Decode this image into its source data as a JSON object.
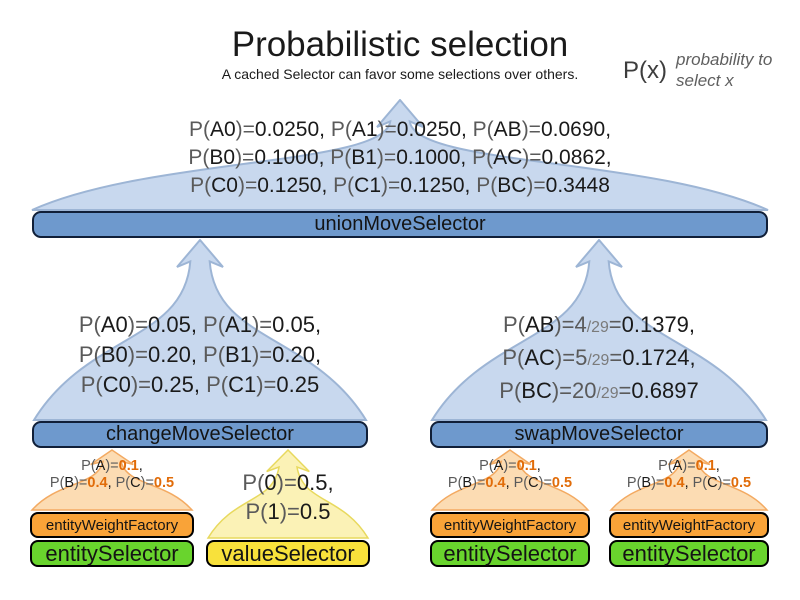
{
  "header": {
    "title": "Probabilistic selection",
    "subtitle": "A cached Selector can favor some selections over others.",
    "legend": {
      "symbol": "P(x)",
      "description": "probability to select x"
    }
  },
  "colors": {
    "blue_funnel": "#c8d8ee",
    "blue_funnel_stroke": "#9db5d5",
    "blue_bar": "#6e99cd",
    "orange_funnel": "#fcdcb3",
    "orange_funnel_stroke": "#f3aa62",
    "orange_bar": "#f9a338",
    "green_bar": "#69d42d",
    "yellow_funnel": "#fbf2b6",
    "yellow_funnel_stroke": "#e8d95e",
    "yellow_bar": "#f8e13b",
    "highlight_orange": "#e16c09"
  },
  "diagram": {
    "union": {
      "label": "unionMoveSelector",
      "lines": [
        [
          {
            "t": "P(",
            "k": "dim"
          },
          {
            "t": "A0",
            "k": "val"
          },
          {
            "t": ")=",
            "k": "dim"
          },
          {
            "t": "0.0250",
            "k": "val"
          },
          {
            "t": ", ",
            "k": "val"
          },
          {
            "t": "P(",
            "k": "dim"
          },
          {
            "t": "A1",
            "k": "val"
          },
          {
            "t": ")=",
            "k": "dim"
          },
          {
            "t": "0.0250",
            "k": "val"
          },
          {
            "t": ", ",
            "k": "val"
          },
          {
            "t": "P(",
            "k": "dim"
          },
          {
            "t": "AB",
            "k": "val"
          },
          {
            "t": ")=",
            "k": "dim"
          },
          {
            "t": "0.0690",
            "k": "val"
          },
          {
            "t": ",",
            "k": "val"
          }
        ],
        [
          {
            "t": "P(",
            "k": "dim"
          },
          {
            "t": "B0",
            "k": "val"
          },
          {
            "t": ")=",
            "k": "dim"
          },
          {
            "t": "0.1000",
            "k": "val"
          },
          {
            "t": ", ",
            "k": "val"
          },
          {
            "t": "P(",
            "k": "dim"
          },
          {
            "t": "B1",
            "k": "val"
          },
          {
            "t": ")=",
            "k": "dim"
          },
          {
            "t": "0.1000",
            "k": "val"
          },
          {
            "t": ", ",
            "k": "val"
          },
          {
            "t": "P(",
            "k": "dim"
          },
          {
            "t": "AC",
            "k": "val"
          },
          {
            "t": ")=",
            "k": "dim"
          },
          {
            "t": "0.0862",
            "k": "val"
          },
          {
            "t": ",",
            "k": "val"
          }
        ],
        [
          {
            "t": "P(",
            "k": "dim"
          },
          {
            "t": "C0",
            "k": "val"
          },
          {
            "t": ")=",
            "k": "dim"
          },
          {
            "t": "0.1250",
            "k": "val"
          },
          {
            "t": ", ",
            "k": "val"
          },
          {
            "t": "P(",
            "k": "dim"
          },
          {
            "t": "C1",
            "k": "val"
          },
          {
            "t": ")=",
            "k": "dim"
          },
          {
            "t": "0.1250",
            "k": "val"
          },
          {
            "t": ", ",
            "k": "val"
          },
          {
            "t": "P(",
            "k": "dim"
          },
          {
            "t": "BC",
            "k": "val"
          },
          {
            "t": ")=",
            "k": "dim"
          },
          {
            "t": "0.3448",
            "k": "val"
          }
        ]
      ]
    },
    "change": {
      "label": "changeMoveSelector",
      "lines": [
        [
          {
            "t": "P(",
            "k": "dim"
          },
          {
            "t": "A0",
            "k": "val"
          },
          {
            "t": ")=",
            "k": "dim"
          },
          {
            "t": "0.05",
            "k": "val"
          },
          {
            "t": ", ",
            "k": "val"
          },
          {
            "t": "P(",
            "k": "dim"
          },
          {
            "t": "A1",
            "k": "val"
          },
          {
            "t": ")=",
            "k": "dim"
          },
          {
            "t": "0.05",
            "k": "val"
          },
          {
            "t": ",",
            "k": "val"
          }
        ],
        [
          {
            "t": "P(",
            "k": "dim"
          },
          {
            "t": "B0",
            "k": "val"
          },
          {
            "t": ")=",
            "k": "dim"
          },
          {
            "t": "0.20",
            "k": "val"
          },
          {
            "t": ", ",
            "k": "val"
          },
          {
            "t": "P(",
            "k": "dim"
          },
          {
            "t": "B1",
            "k": "val"
          },
          {
            "t": ")=",
            "k": "dim"
          },
          {
            "t": "0.20",
            "k": "val"
          },
          {
            "t": ",",
            "k": "val"
          }
        ],
        [
          {
            "t": "P(",
            "k": "dim"
          },
          {
            "t": "C0",
            "k": "val"
          },
          {
            "t": ")=",
            "k": "dim"
          },
          {
            "t": "0.25",
            "k": "val"
          },
          {
            "t": ", ",
            "k": "val"
          },
          {
            "t": "P(",
            "k": "dim"
          },
          {
            "t": "C1",
            "k": "val"
          },
          {
            "t": ")=",
            "k": "dim"
          },
          {
            "t": "0.25",
            "k": "val"
          }
        ]
      ]
    },
    "swap": {
      "label": "swapMoveSelector",
      "lines": [
        [
          {
            "t": "P(",
            "k": "dim"
          },
          {
            "t": "AB",
            "k": "val"
          },
          {
            "t": ")=",
            "k": "dim"
          },
          {
            "t": "4",
            "k": "dim"
          },
          {
            "t": "/29",
            "k": "frac"
          },
          {
            "t": "=",
            "k": "dim"
          },
          {
            "t": "0.1379",
            "k": "val"
          },
          {
            "t": ",",
            "k": "val"
          }
        ],
        [
          {
            "t": "P(",
            "k": "dim"
          },
          {
            "t": "AC",
            "k": "val"
          },
          {
            "t": ")=",
            "k": "dim"
          },
          {
            "t": "5",
            "k": "dim"
          },
          {
            "t": "/29",
            "k": "frac"
          },
          {
            "t": "=",
            "k": "dim"
          },
          {
            "t": "0.1724",
            "k": "val"
          },
          {
            "t": ",",
            "k": "val"
          }
        ],
        [
          {
            "t": "P(",
            "k": "dim"
          },
          {
            "t": "BC",
            "k": "val"
          },
          {
            "t": ")=",
            "k": "dim"
          },
          {
            "t": "20",
            "k": "dim"
          },
          {
            "t": "/29",
            "k": "frac"
          },
          {
            "t": "=",
            "k": "dim"
          },
          {
            "t": "0.6897",
            "k": "val"
          }
        ]
      ]
    },
    "entity_stacks": [
      {
        "factory_label": "entityWeightFactory",
        "selector_label": "entitySelector",
        "lines": [
          [
            {
              "t": "P(",
              "k": "dim"
            },
            {
              "t": "A",
              "k": "val"
            },
            {
              "t": ")=",
              "k": "dim"
            },
            {
              "t": "0.1",
              "k": "hl"
            },
            {
              "t": ",",
              "k": "val"
            }
          ],
          [
            {
              "t": "P(",
              "k": "dim"
            },
            {
              "t": "B",
              "k": "val"
            },
            {
              "t": ")=",
              "k": "dim"
            },
            {
              "t": "0.4",
              "k": "hl"
            },
            {
              "t": ", ",
              "k": "val"
            },
            {
              "t": "P(",
              "k": "dim"
            },
            {
              "t": "C",
              "k": "val"
            },
            {
              "t": ")=",
              "k": "dim"
            },
            {
              "t": "0.5",
              "k": "hl"
            }
          ]
        ]
      },
      {
        "factory_label": "entityWeightFactory",
        "selector_label": "entitySelector",
        "lines": [
          [
            {
              "t": "P(",
              "k": "dim"
            },
            {
              "t": "A",
              "k": "val"
            },
            {
              "t": ")=",
              "k": "dim"
            },
            {
              "t": "0.1",
              "k": "hl"
            },
            {
              "t": ",",
              "k": "val"
            }
          ],
          [
            {
              "t": "P(",
              "k": "dim"
            },
            {
              "t": "B",
              "k": "val"
            },
            {
              "t": ")=",
              "k": "dim"
            },
            {
              "t": "0.4",
              "k": "hl"
            },
            {
              "t": ", ",
              "k": "val"
            },
            {
              "t": "P(",
              "k": "dim"
            },
            {
              "t": "C",
              "k": "val"
            },
            {
              "t": ")=",
              "k": "dim"
            },
            {
              "t": "0.5",
              "k": "hl"
            }
          ]
        ]
      },
      {
        "factory_label": "entityWeightFactory",
        "selector_label": "entitySelector",
        "lines": [
          [
            {
              "t": "P(",
              "k": "dim"
            },
            {
              "t": "A",
              "k": "val"
            },
            {
              "t": ")=",
              "k": "dim"
            },
            {
              "t": "0.1",
              "k": "hl"
            },
            {
              "t": ",",
              "k": "val"
            }
          ],
          [
            {
              "t": "P(",
              "k": "dim"
            },
            {
              "t": "B",
              "k": "val"
            },
            {
              "t": ")=",
              "k": "dim"
            },
            {
              "t": "0.4",
              "k": "hl"
            },
            {
              "t": ", ",
              "k": "val"
            },
            {
              "t": "P(",
              "k": "dim"
            },
            {
              "t": "C",
              "k": "val"
            },
            {
              "t": ")=",
              "k": "dim"
            },
            {
              "t": "0.5",
              "k": "hl"
            }
          ]
        ]
      }
    ],
    "value_stack": {
      "selector_label": "valueSelector",
      "lines": [
        [
          {
            "t": "P(",
            "k": "dim"
          },
          {
            "t": "0",
            "k": "val"
          },
          {
            "t": ")=",
            "k": "dim"
          },
          {
            "t": "0.5",
            "k": "val"
          },
          {
            "t": ",",
            "k": "val"
          }
        ],
        [
          {
            "t": "P(",
            "k": "dim"
          },
          {
            "t": "1",
            "k": "val"
          },
          {
            "t": ")=",
            "k": "dim"
          },
          {
            "t": "0.5",
            "k": "val"
          }
        ]
      ]
    }
  }
}
